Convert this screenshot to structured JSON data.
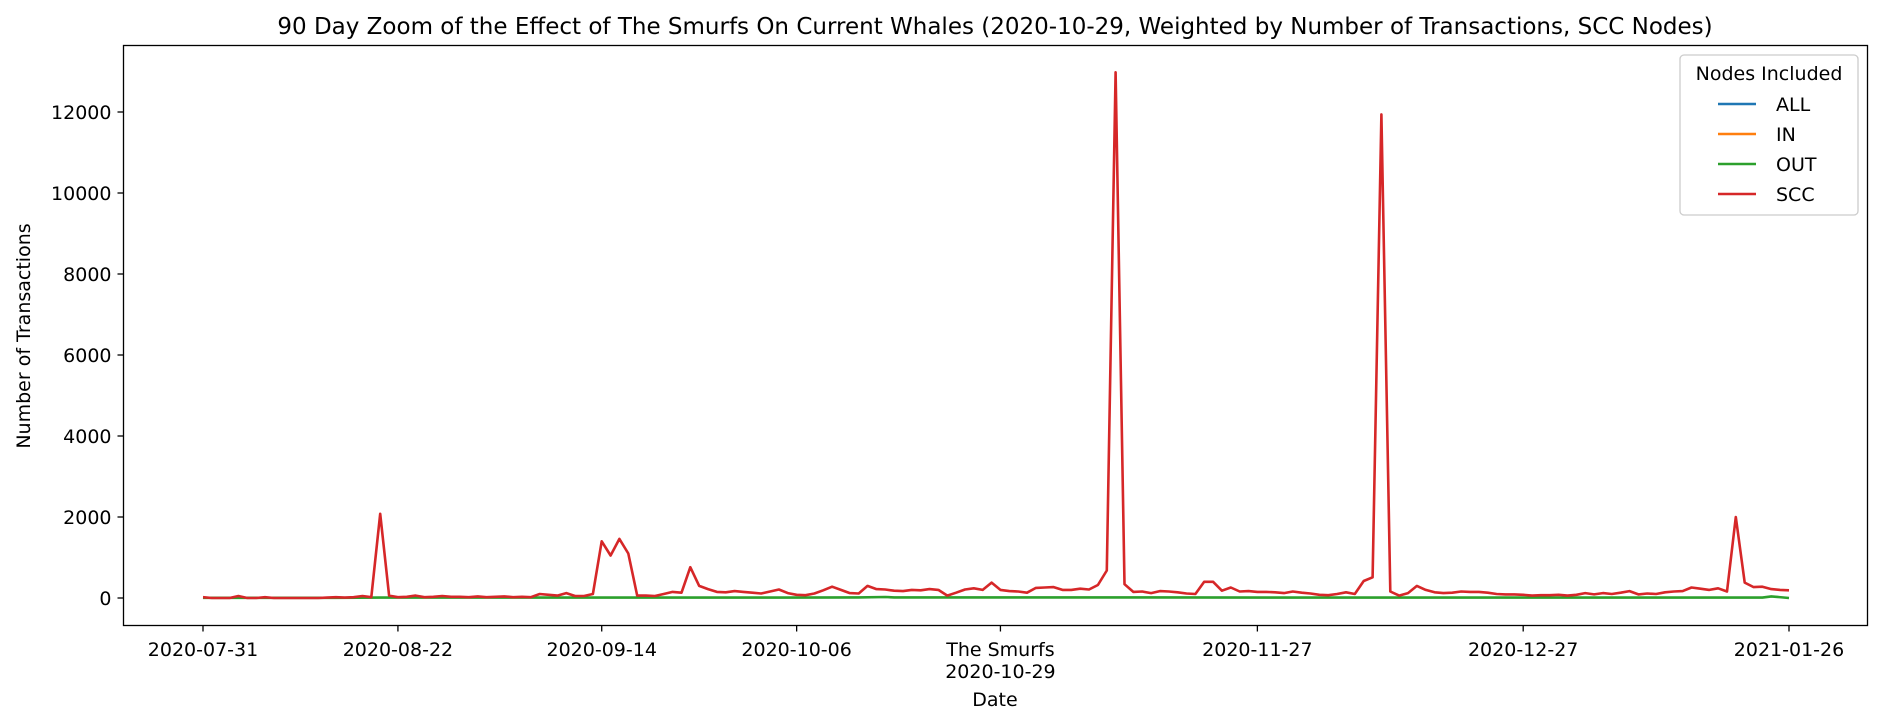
{
  "chart_data": {
    "type": "line",
    "title": "90 Day Zoom of the Effect of The Smurfs On Current Whales (2020-10-29, Weighted by Number of Transactions, SCC Nodes)",
    "xlabel": "Date",
    "ylabel": "Number of Transactions",
    "x_start": "2020-07-31",
    "x_end": "2021-01-26",
    "ylim": [
      -650,
      13600
    ],
    "yticks": [
      0,
      2000,
      4000,
      6000,
      8000,
      10000,
      12000
    ],
    "ytick_labels": [
      "0",
      "2000",
      "4000",
      "6000",
      "8000",
      "10000",
      "12000"
    ],
    "xticks": [
      "2020-07-31",
      "2020-08-22",
      "2020-09-14",
      "2020-10-06",
      "2020-10-29",
      "2020-11-27",
      "2020-12-27",
      "2021-01-26"
    ],
    "xtick_labels": [
      "2020-07-31",
      "2020-08-22",
      "2020-09-14",
      "2020-10-06",
      "2020-10-29",
      "2020-11-27",
      "2020-12-27",
      "2021-01-26"
    ],
    "event": {
      "label": "The Smurfs",
      "date": "2020-10-29"
    },
    "grid": false,
    "legend": {
      "title": "Nodes Included",
      "position": "top-right"
    },
    "series": [
      {
        "name": "ALL",
        "color": "#1f77b4"
      },
      {
        "name": "IN",
        "color": "#ff7f0e"
      },
      {
        "name": "OUT",
        "color": "#2ca02c",
        "points": [
          [
            "2020-07-31",
            5
          ],
          [
            "2020-08-15",
            5
          ],
          [
            "2020-08-20",
            10
          ],
          [
            "2020-09-04",
            10
          ],
          [
            "2020-09-20",
            10
          ],
          [
            "2020-10-05",
            10
          ],
          [
            "2020-10-13",
            15
          ],
          [
            "2020-10-16",
            25
          ],
          [
            "2020-10-17",
            15
          ],
          [
            "2020-11-15",
            15
          ],
          [
            "2020-12-02",
            10
          ],
          [
            "2021-01-23",
            10
          ],
          [
            "2021-01-24",
            40
          ],
          [
            "2021-01-26",
            0
          ]
        ]
      },
      {
        "name": "SCC",
        "color": "#d62728",
        "points": [
          [
            "2020-07-31",
            20
          ],
          [
            "2020-08-01",
            0
          ],
          [
            "2020-08-02",
            0
          ],
          [
            "2020-08-03",
            0
          ],
          [
            "2020-08-04",
            50
          ],
          [
            "2020-08-05",
            0
          ],
          [
            "2020-08-06",
            0
          ],
          [
            "2020-08-07",
            20
          ],
          [
            "2020-08-08",
            0
          ],
          [
            "2020-08-09",
            0
          ],
          [
            "2020-08-10",
            0
          ],
          [
            "2020-08-11",
            0
          ],
          [
            "2020-08-12",
            0
          ],
          [
            "2020-08-13",
            0
          ],
          [
            "2020-08-14",
            10
          ],
          [
            "2020-08-15",
            20
          ],
          [
            "2020-08-16",
            10
          ],
          [
            "2020-08-17",
            20
          ],
          [
            "2020-08-18",
            50
          ],
          [
            "2020-08-19",
            20
          ],
          [
            "2020-08-20",
            2080
          ],
          [
            "2020-08-21",
            60
          ],
          [
            "2020-08-22",
            20
          ],
          [
            "2020-08-23",
            30
          ],
          [
            "2020-08-24",
            60
          ],
          [
            "2020-08-25",
            20
          ],
          [
            "2020-08-26",
            30
          ],
          [
            "2020-08-27",
            50
          ],
          [
            "2020-08-28",
            30
          ],
          [
            "2020-08-29",
            30
          ],
          [
            "2020-08-30",
            20
          ],
          [
            "2020-08-31",
            40
          ],
          [
            "2020-09-01",
            20
          ],
          [
            "2020-09-02",
            30
          ],
          [
            "2020-09-03",
            40
          ],
          [
            "2020-09-04",
            20
          ],
          [
            "2020-09-05",
            30
          ],
          [
            "2020-09-06",
            20
          ],
          [
            "2020-09-07",
            100
          ],
          [
            "2020-09-08",
            80
          ],
          [
            "2020-09-09",
            60
          ],
          [
            "2020-09-10",
            120
          ],
          [
            "2020-09-11",
            50
          ],
          [
            "2020-09-12",
            50
          ],
          [
            "2020-09-13",
            100
          ],
          [
            "2020-09-14",
            1400
          ],
          [
            "2020-09-15",
            1050
          ],
          [
            "2020-09-16",
            1460
          ],
          [
            "2020-09-17",
            1100
          ],
          [
            "2020-09-18",
            60
          ],
          [
            "2020-09-19",
            60
          ],
          [
            "2020-09-20",
            50
          ],
          [
            "2020-09-21",
            100
          ],
          [
            "2020-09-22",
            150
          ],
          [
            "2020-09-23",
            130
          ],
          [
            "2020-09-24",
            760
          ],
          [
            "2020-09-25",
            300
          ],
          [
            "2020-09-26",
            220
          ],
          [
            "2020-09-27",
            150
          ],
          [
            "2020-09-28",
            140
          ],
          [
            "2020-09-29",
            170
          ],
          [
            "2020-09-30",
            150
          ],
          [
            "2020-10-01",
            130
          ],
          [
            "2020-10-02",
            110
          ],
          [
            "2020-10-03",
            160
          ],
          [
            "2020-10-04",
            210
          ],
          [
            "2020-10-05",
            120
          ],
          [
            "2020-10-06",
            80
          ],
          [
            "2020-10-07",
            70
          ],
          [
            "2020-10-08",
            110
          ],
          [
            "2020-10-09",
            190
          ],
          [
            "2020-10-10",
            280
          ],
          [
            "2020-10-11",
            200
          ],
          [
            "2020-10-12",
            120
          ],
          [
            "2020-10-13",
            110
          ],
          [
            "2020-10-14",
            300
          ],
          [
            "2020-10-15",
            220
          ],
          [
            "2020-10-16",
            210
          ],
          [
            "2020-10-17",
            180
          ],
          [
            "2020-10-18",
            170
          ],
          [
            "2020-10-19",
            200
          ],
          [
            "2020-10-20",
            190
          ],
          [
            "2020-10-21",
            220
          ],
          [
            "2020-10-22",
            200
          ],
          [
            "2020-10-23",
            60
          ],
          [
            "2020-10-24",
            130
          ],
          [
            "2020-10-25",
            210
          ],
          [
            "2020-10-26",
            240
          ],
          [
            "2020-10-27",
            200
          ],
          [
            "2020-10-28",
            380
          ],
          [
            "2020-10-29",
            200
          ],
          [
            "2020-10-30",
            170
          ],
          [
            "2020-10-31",
            160
          ],
          [
            "2020-11-01",
            130
          ],
          [
            "2020-11-02",
            250
          ],
          [
            "2020-11-03",
            260
          ],
          [
            "2020-11-04",
            270
          ],
          [
            "2020-11-05",
            200
          ],
          [
            "2020-11-06",
            200
          ],
          [
            "2020-11-07",
            230
          ],
          [
            "2020-11-08",
            210
          ],
          [
            "2020-11-09",
            320
          ],
          [
            "2020-11-10",
            680
          ],
          [
            "2020-11-11",
            12980
          ],
          [
            "2020-11-12",
            340
          ],
          [
            "2020-11-13",
            150
          ],
          [
            "2020-11-14",
            160
          ],
          [
            "2020-11-15",
            120
          ],
          [
            "2020-11-16",
            170
          ],
          [
            "2020-11-17",
            160
          ],
          [
            "2020-11-18",
            140
          ],
          [
            "2020-11-19",
            110
          ],
          [
            "2020-11-20",
            100
          ],
          [
            "2020-11-21",
            400
          ],
          [
            "2020-11-22",
            400
          ],
          [
            "2020-11-23",
            180
          ],
          [
            "2020-11-24",
            260
          ],
          [
            "2020-11-25",
            160
          ],
          [
            "2020-11-26",
            170
          ],
          [
            "2020-11-27",
            150
          ],
          [
            "2020-11-28",
            150
          ],
          [
            "2020-11-29",
            140
          ],
          [
            "2020-11-30",
            120
          ],
          [
            "2020-12-01",
            160
          ],
          [
            "2020-12-02",
            130
          ],
          [
            "2020-12-03",
            110
          ],
          [
            "2020-12-04",
            80
          ],
          [
            "2020-12-05",
            70
          ],
          [
            "2020-12-06",
            100
          ],
          [
            "2020-12-07",
            140
          ],
          [
            "2020-12-08",
            100
          ],
          [
            "2020-12-09",
            420
          ],
          [
            "2020-12-10",
            510
          ],
          [
            "2020-12-11",
            11940
          ],
          [
            "2020-12-12",
            160
          ],
          [
            "2020-12-13",
            60
          ],
          [
            "2020-12-14",
            120
          ],
          [
            "2020-12-15",
            300
          ],
          [
            "2020-12-16",
            200
          ],
          [
            "2020-12-17",
            140
          ],
          [
            "2020-12-18",
            120
          ],
          [
            "2020-12-19",
            130
          ],
          [
            "2020-12-20",
            160
          ],
          [
            "2020-12-21",
            150
          ],
          [
            "2020-12-22",
            150
          ],
          [
            "2020-12-23",
            130
          ],
          [
            "2020-12-24",
            100
          ],
          [
            "2020-12-25",
            90
          ],
          [
            "2020-12-26",
            90
          ],
          [
            "2020-12-27",
            80
          ],
          [
            "2020-12-28",
            60
          ],
          [
            "2020-12-29",
            70
          ],
          [
            "2020-12-30",
            70
          ],
          [
            "2020-12-31",
            80
          ],
          [
            "2021-01-01",
            60
          ],
          [
            "2021-01-02",
            80
          ],
          [
            "2021-01-03",
            120
          ],
          [
            "2021-01-04",
            90
          ],
          [
            "2021-01-05",
            120
          ],
          [
            "2021-01-06",
            100
          ],
          [
            "2021-01-07",
            130
          ],
          [
            "2021-01-08",
            170
          ],
          [
            "2021-01-09",
            90
          ],
          [
            "2021-01-10",
            110
          ],
          [
            "2021-01-11",
            100
          ],
          [
            "2021-01-12",
            140
          ],
          [
            "2021-01-13",
            160
          ],
          [
            "2021-01-14",
            170
          ],
          [
            "2021-01-15",
            260
          ],
          [
            "2021-01-16",
            230
          ],
          [
            "2021-01-17",
            200
          ],
          [
            "2021-01-18",
            240
          ],
          [
            "2021-01-19",
            160
          ],
          [
            "2021-01-20",
            2000
          ],
          [
            "2021-01-21",
            380
          ],
          [
            "2021-01-22",
            270
          ],
          [
            "2021-01-23",
            280
          ],
          [
            "2021-01-24",
            220
          ],
          [
            "2021-01-25",
            200
          ],
          [
            "2021-01-26",
            190
          ]
        ]
      }
    ]
  }
}
